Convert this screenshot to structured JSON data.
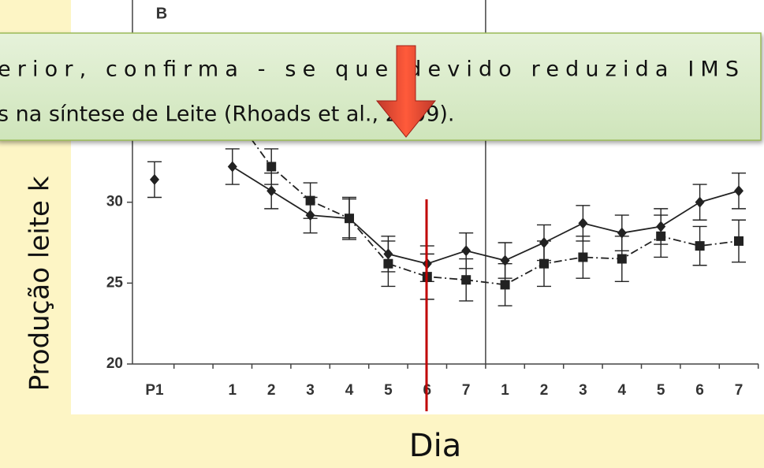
{
  "chart_data": {
    "type": "line",
    "panel_label": "B",
    "categories": [
      "P1",
      null,
      "1",
      "2",
      "3",
      "4",
      "5",
      "6",
      "7",
      "1",
      "2",
      "3",
      "4",
      "5",
      "6",
      "7"
    ],
    "series": [
      {
        "color": "#222222",
        "marker": "diamond",
        "dash": "solid",
        "values": [
          31.4,
          null,
          32.2,
          30.7,
          29.2,
          29.0,
          26.8,
          26.2,
          27.0,
          26.4,
          27.5,
          28.7,
          28.1,
          28.5,
          30.0,
          30.7
        ],
        "errors": [
          1.1,
          null,
          1.1,
          1.1,
          1.1,
          1.2,
          1.1,
          1.1,
          1.1,
          1.1,
          1.1,
          1.1,
          1.1,
          1.1,
          1.1,
          1.1
        ]
      },
      {
        "color": "#222222",
        "marker": "square",
        "dash": "dash-dot",
        "values": [
          null,
          null,
          35.5,
          32.2,
          30.1,
          29.0,
          26.2,
          25.4,
          25.2,
          24.9,
          26.2,
          26.6,
          26.5,
          27.9,
          27.3,
          27.6
        ],
        "errors": [
          null,
          null,
          null,
          1.1,
          1.1,
          1.3,
          1.4,
          1.4,
          1.3,
          1.3,
          1.4,
          1.3,
          1.4,
          1.3,
          1.2,
          1.3
        ]
      }
    ],
    "ylim": [
      20,
      42.5
    ],
    "yticks": [
      20,
      25,
      30
    ]
  },
  "slide": {
    "overlay_lines": [
      "erior, confirma - se que devido reduzida IMS",
      "s na síntese de Leite (Rhoads et al., 2009)."
    ],
    "y_label": "Produção leite  k",
    "x_label": "Dia"
  }
}
